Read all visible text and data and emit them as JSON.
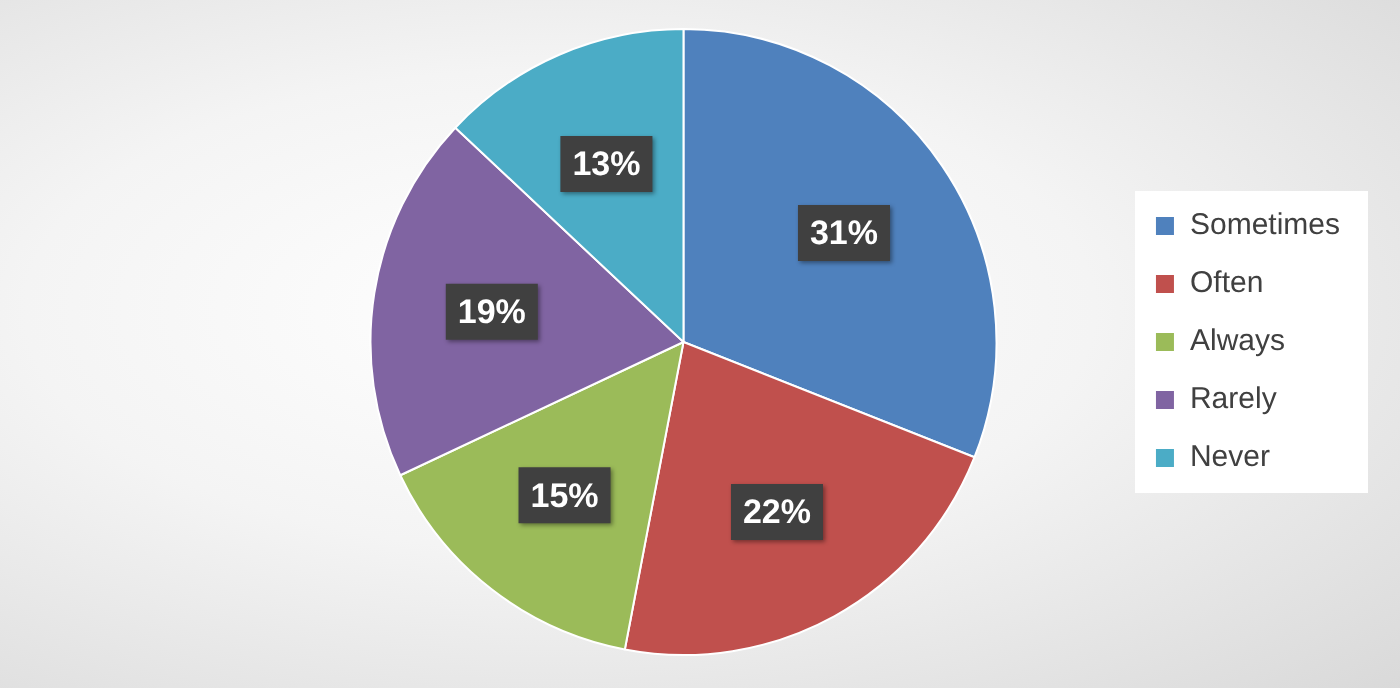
{
  "chart_data": {
    "type": "pie",
    "categories": [
      "Sometimes",
      "Often",
      "Always",
      "Rarely",
      "Never"
    ],
    "values": [
      31,
      22,
      15,
      19,
      13
    ],
    "colors": [
      "#4f81bd",
      "#c0504d",
      "#9bbb59",
      "#8064a2",
      "#4bacc6"
    ],
    "value_labels": [
      "31%",
      "22%",
      "15%",
      "19%",
      "13%"
    ],
    "legend": "right"
  }
}
